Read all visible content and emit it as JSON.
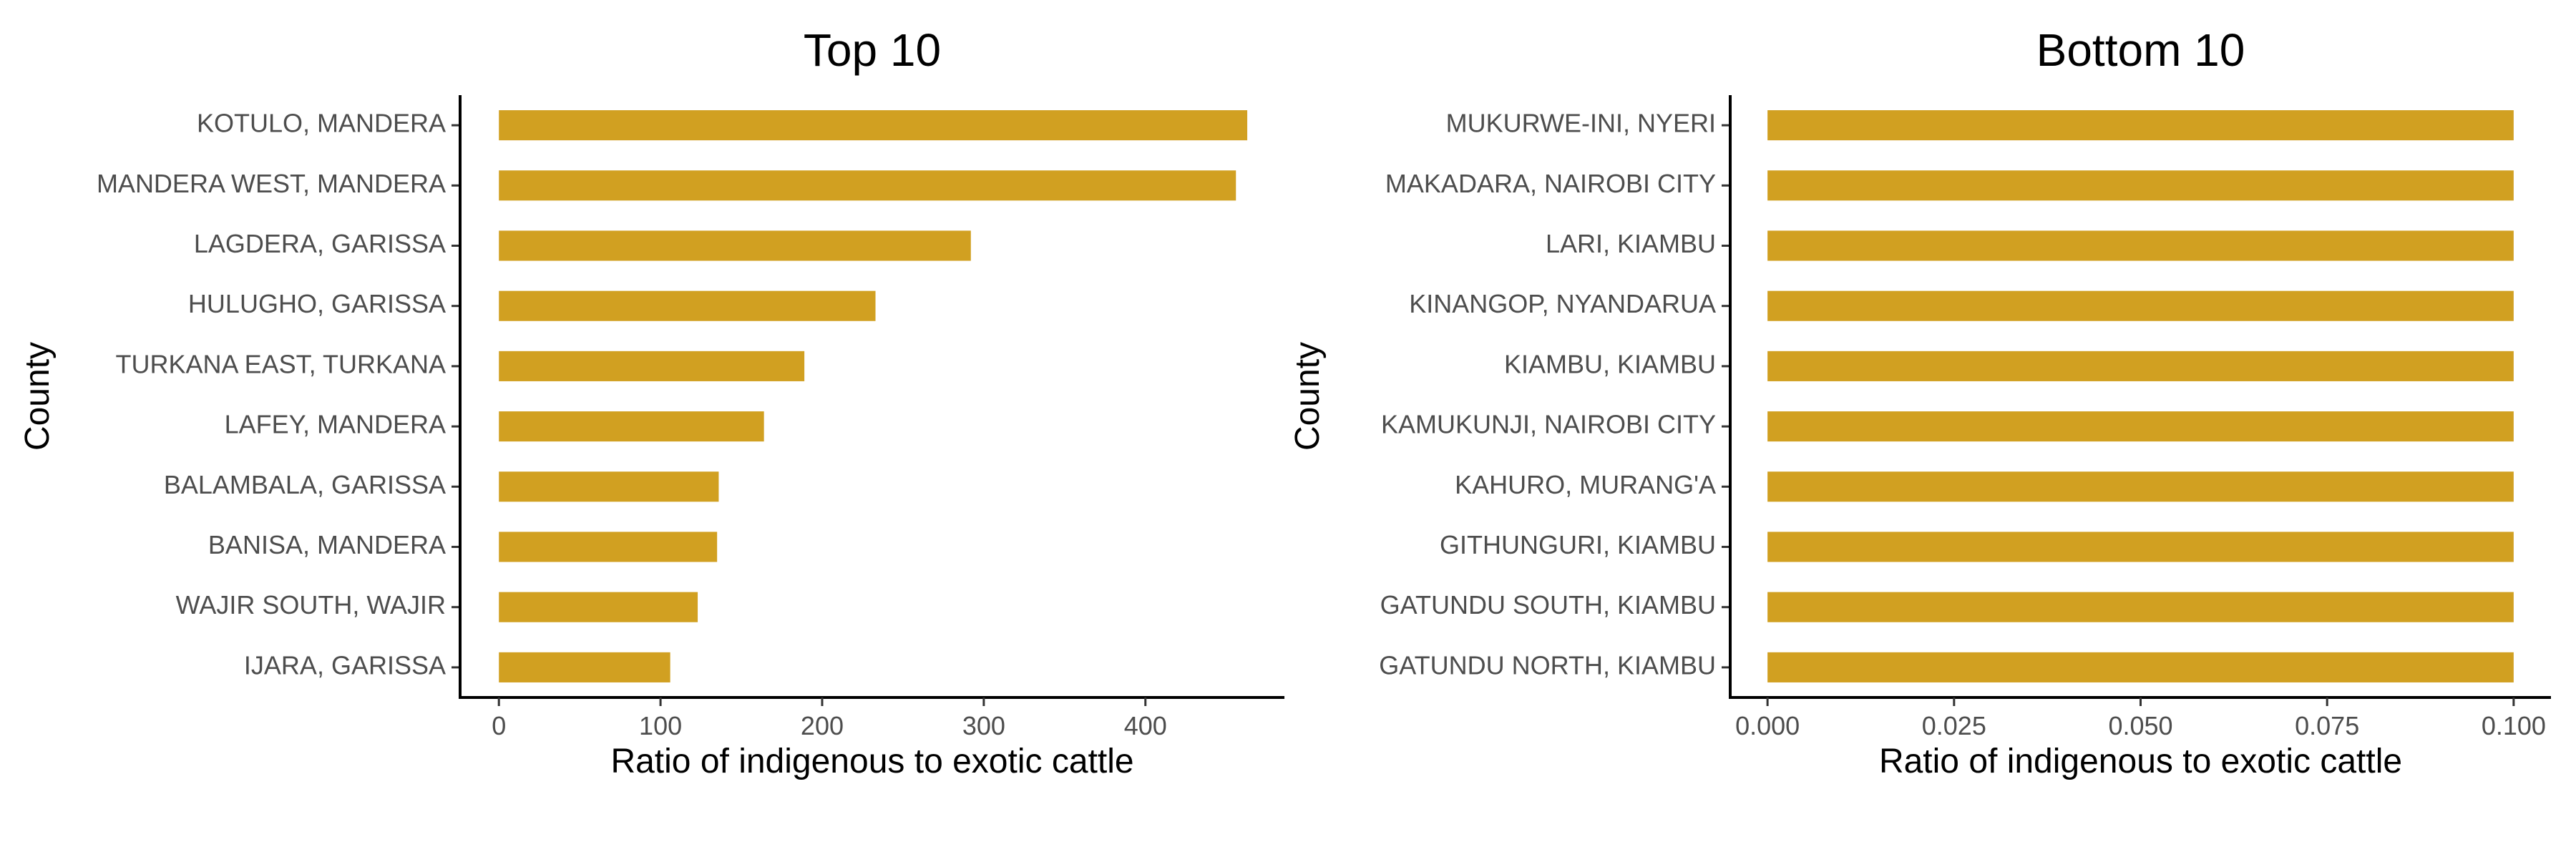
{
  "chart_data": [
    {
      "type": "bar",
      "orientation": "horizontal",
      "title": "Top 10",
      "xlabel": "Ratio of indigenous to exotic cattle",
      "ylabel": "County",
      "xlim": [
        -24,
        486
      ],
      "xticks": [
        0,
        100,
        200,
        300,
        400
      ],
      "xtick_labels": [
        "0",
        "100",
        "200",
        "300",
        "400"
      ],
      "grid": false,
      "bar_color": "#D1A021",
      "categories": [
        "KOTULO, MANDERA",
        "MANDERA WEST, MANDERA",
        "LAGDERA, GARISSA",
        "HULUGHO, GARISSA",
        "TURKANA EAST, TURKANA",
        "LAFEY, MANDERA",
        "BALAMBALA, GARISSA",
        "BANISA, MANDERA",
        "WAJIR SOUTH, WAJIR",
        "IJARA, GARISSA"
      ],
      "values": [
        463,
        456,
        292,
        233,
        189,
        164,
        136,
        135,
        123,
        106
      ]
    },
    {
      "type": "bar",
      "orientation": "horizontal",
      "title": "Bottom 10",
      "xlabel": "Ratio of indigenous to exotic cattle",
      "ylabel": "County",
      "xlim": [
        -0.005,
        0.105
      ],
      "xticks": [
        0,
        0.025,
        0.05,
        0.075,
        0.1
      ],
      "xtick_labels": [
        "0.000",
        "0.025",
        "0.050",
        "0.075",
        "0.100"
      ],
      "grid": false,
      "bar_color": "#D1A021",
      "categories": [
        "MUKURWE-INI, NYERI",
        "MAKADARA, NAIROBI CITY",
        "LARI, KIAMBU",
        "KINANGOP, NYANDARUA",
        "KIAMBU, KIAMBU",
        "KAMUKUNJI, NAIROBI CITY",
        "KAHURO, MURANG'A",
        "GITHUNGURI, KIAMBU",
        "GATUNDU SOUTH, KIAMBU",
        "GATUNDU NORTH, KIAMBU"
      ],
      "values": [
        0.1,
        0.1,
        0.1,
        0.1,
        0.1,
        0.1,
        0.1,
        0.1,
        0.1,
        0.1
      ]
    }
  ]
}
